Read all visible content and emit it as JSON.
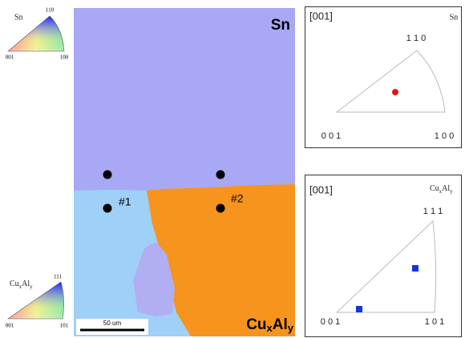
{
  "sn_legend": {
    "phase": "Sn",
    "top": "110",
    "left": "001",
    "right": "100"
  },
  "cualy_legend": {
    "phase": {
      "base1": "Cu",
      "sub1": "x",
      "base2": "Al",
      "sub2": "y"
    },
    "top": "111",
    "left": "001",
    "right": "101"
  },
  "map": {
    "top_phase": "Sn",
    "bottom_phase": {
      "base1": "Cu",
      "sub1": "x",
      "base2": "Al",
      "sub2": "y"
    },
    "point_1": "#1",
    "point_2": "#2",
    "scale_bar": "50 um"
  },
  "sn_pole": {
    "direction": "[001]",
    "phase": "Sn",
    "top": "1 1 0",
    "left": "0 0 1",
    "right": "1 0 0"
  },
  "cualy_pole": {
    "direction": "[001]",
    "phase": {
      "base1": "Cu",
      "sub1": "x",
      "base2": "Al",
      "sub2": "y"
    },
    "top": "1 1 1",
    "left": "0 0 1",
    "right": "1 0 1"
  }
}
